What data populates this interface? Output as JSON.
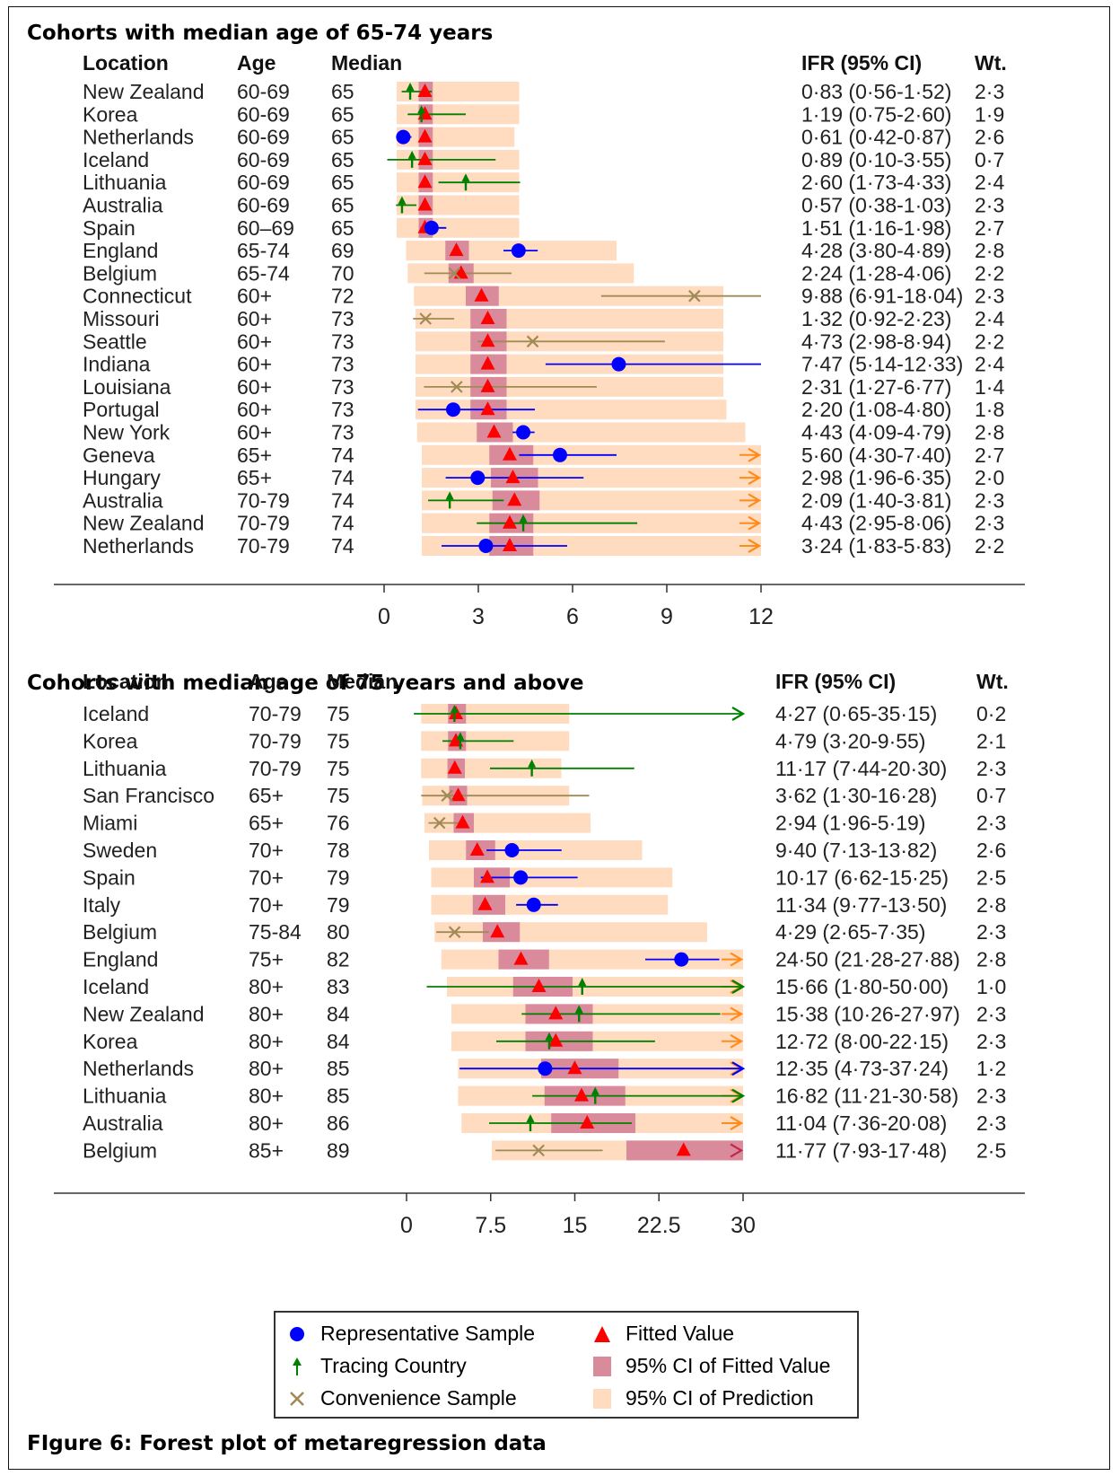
{
  "figure_caption": "FIgure 6: Forest plot of metaregression data",
  "colors": {
    "representative": "#0000ff",
    "tracing": "#008000",
    "convenience": "#a08a55",
    "fitted": "#ff0000",
    "ci_fitted": "#d98b9b",
    "ci_prediction": "#ffdcbf",
    "arrow_truncation": "#ff8c1a"
  },
  "legend": {
    "representative": "Representative Sample",
    "tracing": "Tracing Country",
    "convenience": "Convenience Sample",
    "fitted": "Fitted Value",
    "ci_fitted": "95% CI of Fitted Value",
    "ci_prediction": "95% CI of Prediction"
  },
  "chart_data": [
    {
      "type": "forest",
      "title": "Cohorts with median age of 65-74 years",
      "columns": {
        "location": "Location",
        "age": "Age",
        "median": "Median",
        "ifr": "IFR (95% CI)",
        "wt": "Wt."
      },
      "xticks": [
        0,
        3,
        6,
        9,
        12
      ],
      "xlabels": [
        "0",
        "3",
        "6",
        "9",
        "12"
      ],
      "xlim": [
        0,
        12
      ],
      "rows": [
        {
          "location": "New Zealand",
          "age": "60-69",
          "median": "65",
          "ifr_text": "0·83 (0·56-1·52)",
          "wt": "2·3",
          "type": "tracing",
          "est": 0.83,
          "lo": 0.56,
          "hi": 1.52,
          "fit": 1.3,
          "fit_lo": 1.1,
          "fit_hi": 1.55,
          "pred_lo": 0.4,
          "pred_hi": 4.3,
          "pred_arrow": false
        },
        {
          "location": "Korea",
          "age": "60-69",
          "median": "65",
          "ifr_text": "1·19 (0·75-2·60)",
          "wt": "1·9",
          "type": "tracing",
          "est": 1.19,
          "lo": 0.75,
          "hi": 2.6,
          "fit": 1.3,
          "fit_lo": 1.1,
          "fit_hi": 1.55,
          "pred_lo": 0.4,
          "pred_hi": 4.3,
          "pred_arrow": false
        },
        {
          "location": "Netherlands",
          "age": "60-69",
          "median": "65",
          "ifr_text": "0·61 (0·42-0·87)",
          "wt": "2·6",
          "type": "representative",
          "est": 0.61,
          "lo": 0.42,
          "hi": 0.87,
          "fit": 1.3,
          "fit_lo": 1.1,
          "fit_hi": 1.55,
          "pred_lo": 0.4,
          "pred_hi": 4.15,
          "pred_arrow": false
        },
        {
          "location": "Iceland",
          "age": "60-69",
          "median": "65",
          "ifr_text": "0·89 (0·10-3·55)",
          "wt": "0·7",
          "type": "tracing",
          "est": 0.89,
          "lo": 0.1,
          "hi": 3.55,
          "fit": 1.3,
          "fit_lo": 1.1,
          "fit_hi": 1.55,
          "pred_lo": 0.4,
          "pred_hi": 4.3,
          "pred_arrow": false
        },
        {
          "location": "Lithuania",
          "age": "60-69",
          "median": "65",
          "ifr_text": "2·60 (1·73-4·33)",
          "wt": "2·4",
          "type": "tracing",
          "est": 2.6,
          "lo": 1.73,
          "hi": 4.33,
          "fit": 1.3,
          "fit_lo": 1.1,
          "fit_hi": 1.55,
          "pred_lo": 0.4,
          "pred_hi": 4.3,
          "pred_arrow": false
        },
        {
          "location": "Australia",
          "age": "60-69",
          "median": "65",
          "ifr_text": "0·57 (0·38-1·03)",
          "wt": "2·3",
          "type": "tracing",
          "est": 0.57,
          "lo": 0.38,
          "hi": 1.03,
          "fit": 1.3,
          "fit_lo": 1.1,
          "fit_hi": 1.55,
          "pred_lo": 0.4,
          "pred_hi": 4.3,
          "pred_arrow": false
        },
        {
          "location": "Spain",
          "age": "60–69",
          "median": "65",
          "ifr_text": "1·51 (1·16-1·98)",
          "wt": "2·7",
          "type": "representative",
          "est": 1.51,
          "lo": 1.16,
          "hi": 1.98,
          "fit": 1.3,
          "fit_lo": 1.1,
          "fit_hi": 1.55,
          "pred_lo": 0.4,
          "pred_hi": 4.3,
          "pred_arrow": false
        },
        {
          "location": "England",
          "age": "65-74",
          "median": "69",
          "ifr_text": "4·28 (3·80-4·89)",
          "wt": "2·8",
          "type": "representative",
          "est": 4.28,
          "lo": 3.8,
          "hi": 4.89,
          "fit": 2.3,
          "fit_lo": 1.95,
          "fit_hi": 2.7,
          "pred_lo": 0.7,
          "pred_hi": 7.4,
          "pred_arrow": false
        },
        {
          "location": "Belgium",
          "age": "65-74",
          "median": "70",
          "ifr_text": "2·24 (1·28-4·06)",
          "wt": "2·2",
          "type": "convenience",
          "est": 2.24,
          "lo": 1.28,
          "hi": 4.06,
          "fit": 2.45,
          "fit_lo": 2.05,
          "fit_hi": 2.85,
          "pred_lo": 0.75,
          "pred_hi": 7.95,
          "pred_arrow": false
        },
        {
          "location": "Connecticut",
          "age": "60+",
          "median": "72",
          "ifr_text": "9·88 (6·91-18·04)",
          "wt": "2·3",
          "type": "convenience",
          "est": 9.88,
          "lo": 6.91,
          "hi": 18.04,
          "fit": 3.1,
          "fit_lo": 2.6,
          "fit_hi": 3.65,
          "pred_lo": 0.95,
          "pred_hi": 10.8,
          "pred_arrow": false
        },
        {
          "location": "Missouri",
          "age": "60+",
          "median": "73",
          "ifr_text": "1·32 (0·92-2·23)",
          "wt": "2·4",
          "type": "convenience",
          "est": 1.32,
          "lo": 0.92,
          "hi": 2.23,
          "fit": 3.3,
          "fit_lo": 2.75,
          "fit_hi": 3.9,
          "pred_lo": 1.0,
          "pred_hi": 10.8,
          "pred_arrow": false
        },
        {
          "location": "Seattle",
          "age": "60+",
          "median": "73",
          "ifr_text": "4·73 (2·98-8·94)",
          "wt": "2·2",
          "type": "convenience",
          "est": 4.73,
          "lo": 2.98,
          "hi": 8.94,
          "fit": 3.3,
          "fit_lo": 2.75,
          "fit_hi": 3.9,
          "pred_lo": 1.0,
          "pred_hi": 10.8,
          "pred_arrow": false
        },
        {
          "location": "Indiana",
          "age": "60+",
          "median": "73",
          "ifr_text": "7·47 (5·14-12·33)",
          "wt": "2·4",
          "type": "representative",
          "est": 7.47,
          "lo": 5.14,
          "hi": 12.33,
          "fit": 3.3,
          "fit_lo": 2.75,
          "fit_hi": 3.9,
          "pred_lo": 1.0,
          "pred_hi": 10.8,
          "pred_arrow": false
        },
        {
          "location": "Louisiana",
          "age": "60+",
          "median": "73",
          "ifr_text": "2·31 (1·27-6·77)",
          "wt": "1·4",
          "type": "convenience",
          "est": 2.31,
          "lo": 1.27,
          "hi": 6.77,
          "fit": 3.3,
          "fit_lo": 2.75,
          "fit_hi": 3.9,
          "pred_lo": 1.0,
          "pred_hi": 10.8,
          "pred_arrow": false
        },
        {
          "location": "Portugal",
          "age": "60+",
          "median": "73",
          "ifr_text": "2·20 (1·08-4·80)",
          "wt": "1·8",
          "type": "representative",
          "est": 2.2,
          "lo": 1.08,
          "hi": 4.8,
          "fit": 3.3,
          "fit_lo": 2.75,
          "fit_hi": 3.9,
          "pred_lo": 1.0,
          "pred_hi": 10.9,
          "pred_arrow": false
        },
        {
          "location": "New York",
          "age": "60+",
          "median": "73",
          "ifr_text": "4·43 (4·09-4·79)",
          "wt": "2·8",
          "type": "representative",
          "est": 4.43,
          "lo": 4.09,
          "hi": 4.79,
          "fit": 3.5,
          "fit_lo": 2.95,
          "fit_hi": 4.1,
          "pred_lo": 1.05,
          "pred_hi": 11.5,
          "pred_arrow": false
        },
        {
          "location": "Geneva",
          "age": "65+",
          "median": "74",
          "ifr_text": "5·60 (4·30-7·40)",
          "wt": "2·7",
          "type": "representative",
          "est": 5.6,
          "lo": 4.3,
          "hi": 7.4,
          "fit": 4.0,
          "fit_lo": 3.35,
          "fit_hi": 4.75,
          "pred_lo": 1.2,
          "pred_hi": 12.0,
          "pred_arrow": true
        },
        {
          "location": "Hungary",
          "age": "65+",
          "median": "74",
          "ifr_text": "2·98 (1·96-6·35)",
          "wt": "2·0",
          "type": "representative",
          "est": 2.98,
          "lo": 1.96,
          "hi": 6.35,
          "fit": 4.1,
          "fit_lo": 3.4,
          "fit_hi": 4.9,
          "pred_lo": 1.2,
          "pred_hi": 12.0,
          "pred_arrow": true
        },
        {
          "location": "Australia",
          "age": "70-79",
          "median": "74",
          "ifr_text": "2·09 (1·40-3·81)",
          "wt": "2·3",
          "type": "tracing",
          "est": 2.09,
          "lo": 1.4,
          "hi": 3.81,
          "fit": 4.15,
          "fit_lo": 3.45,
          "fit_hi": 4.95,
          "pred_lo": 1.2,
          "pred_hi": 12.0,
          "pred_arrow": true
        },
        {
          "location": "New Zealand",
          "age": "70-79",
          "median": "74",
          "ifr_text": "4·43 (2·95-8·06)",
          "wt": "2·3",
          "type": "tracing",
          "est": 4.43,
          "lo": 2.95,
          "hi": 8.06,
          "fit": 4.0,
          "fit_lo": 3.35,
          "fit_hi": 4.75,
          "pred_lo": 1.2,
          "pred_hi": 12.0,
          "pred_arrow": true
        },
        {
          "location": "Netherlands",
          "age": "70-79",
          "median": "74",
          "ifr_text": "3·24 (1·83-5·83)",
          "wt": "2·2",
          "type": "representative",
          "est": 3.24,
          "lo": 1.83,
          "hi": 5.83,
          "fit": 4.0,
          "fit_lo": 3.35,
          "fit_hi": 4.75,
          "pred_lo": 1.2,
          "pred_hi": 12.0,
          "pred_arrow": true
        }
      ]
    },
    {
      "type": "forest",
      "title": "Cohorts with median age of 75 years and above",
      "columns": {
        "location": "Location",
        "age": "Age",
        "median": "Median",
        "ifr": "IFR (95% CI)",
        "wt": "Wt."
      },
      "xticks": [
        0,
        7.5,
        15,
        22.5,
        30
      ],
      "xlabels": [
        "0",
        "7.5",
        "15",
        "22.5",
        "30"
      ],
      "xlim": [
        0,
        30
      ],
      "rows": [
        {
          "location": "Iceland",
          "age": "70-79",
          "median": "75",
          "ifr_text": "4·27 (0·65-35·15)",
          "wt": "0·2",
          "type": "tracing",
          "est": 4.27,
          "lo": 0.65,
          "hi": 30,
          "hi_arrow": true,
          "fit": 4.4,
          "fit_lo": 3.7,
          "fit_hi": 5.3,
          "pred_lo": 1.3,
          "pred_hi": 14.5,
          "pred_arrow": false
        },
        {
          "location": "Korea",
          "age": "70-79",
          "median": "75",
          "ifr_text": "4·79 (3·20-9·55)",
          "wt": "2·1",
          "type": "tracing",
          "est": 4.79,
          "lo": 3.2,
          "hi": 9.55,
          "fit": 4.4,
          "fit_lo": 3.7,
          "fit_hi": 5.3,
          "pred_lo": 1.3,
          "pred_hi": 14.5,
          "pred_arrow": false
        },
        {
          "location": "Lithuania",
          "age": "70-79",
          "median": "75",
          "ifr_text": "11·17 (7·44-20·30)",
          "wt": "2·3",
          "type": "tracing",
          "est": 11.17,
          "lo": 7.44,
          "hi": 20.3,
          "fit": 4.3,
          "fit_lo": 3.65,
          "fit_hi": 5.2,
          "pred_lo": 1.3,
          "pred_hi": 13.8,
          "pred_arrow": false
        },
        {
          "location": "San Francisco",
          "age": "65+",
          "median": "75",
          "ifr_text": "3·62 (1·30-16·28)",
          "wt": "0·7",
          "type": "convenience",
          "est": 3.62,
          "lo": 1.3,
          "hi": 16.28,
          "fit": 4.6,
          "fit_lo": 3.8,
          "fit_hi": 5.4,
          "pred_lo": 1.4,
          "pred_hi": 14.5,
          "pred_arrow": false
        },
        {
          "location": "Miami",
          "age": "65+",
          "median": "76",
          "ifr_text": "2·94 (1·96-5·19)",
          "wt": "2·3",
          "type": "convenience",
          "est": 2.94,
          "lo": 1.96,
          "hi": 5.19,
          "fit": 5.0,
          "fit_lo": 4.2,
          "fit_hi": 6.0,
          "pred_lo": 1.6,
          "pred_hi": 16.4,
          "pred_arrow": false
        },
        {
          "location": "Sweden",
          "age": "70+",
          "median": "78",
          "ifr_text": "9·40 (7·13-13·82)",
          "wt": "2·6",
          "type": "representative",
          "est": 9.4,
          "lo": 7.13,
          "hi": 13.82,
          "fit": 6.3,
          "fit_lo": 5.3,
          "fit_hi": 7.9,
          "pred_lo": 2.0,
          "pred_hi": 21.0,
          "pred_arrow": false
        },
        {
          "location": "Spain",
          "age": "70+",
          "median": "79",
          "ifr_text": "10·17 (6·62-15·25)",
          "wt": "2·5",
          "type": "representative",
          "est": 10.17,
          "lo": 6.62,
          "hi": 15.25,
          "fit": 7.2,
          "fit_lo": 6.0,
          "fit_hi": 9.2,
          "pred_lo": 2.2,
          "pred_hi": 23.7,
          "pred_arrow": false
        },
        {
          "location": "Italy",
          "age": "70+",
          "median": "79",
          "ifr_text": "11·34 (9·77-13·50)",
          "wt": "2·8",
          "type": "representative",
          "est": 11.34,
          "lo": 9.77,
          "hi": 13.5,
          "fit": 7.0,
          "fit_lo": 5.9,
          "fit_hi": 8.8,
          "pred_lo": 2.2,
          "pred_hi": 23.3,
          "pred_arrow": false
        },
        {
          "location": "Belgium",
          "age": "75-84",
          "median": "80",
          "ifr_text": "4·29 (2·65-7·35)",
          "wt": "2·3",
          "type": "convenience",
          "est": 4.29,
          "lo": 2.65,
          "hi": 7.35,
          "fit": 8.1,
          "fit_lo": 6.8,
          "fit_hi": 10.1,
          "pred_lo": 2.5,
          "pred_hi": 26.8,
          "pred_arrow": false
        },
        {
          "location": "England",
          "age": "75+",
          "median": "82",
          "ifr_text": "24·50 (21·28-27·88)",
          "wt": "2·8",
          "type": "representative",
          "est": 24.5,
          "lo": 21.28,
          "hi": 27.88,
          "fit": 10.2,
          "fit_lo": 8.2,
          "fit_hi": 12.7,
          "pred_lo": 3.1,
          "pred_hi": 30,
          "pred_arrow": true
        },
        {
          "location": "Iceland",
          "age": "80+",
          "median": "83",
          "ifr_text": "15·66 (1·80-50·00)",
          "wt": "1·0",
          "type": "tracing",
          "est": 15.66,
          "lo": 1.8,
          "hi": 30,
          "hi_arrow": true,
          "fit": 11.8,
          "fit_lo": 9.5,
          "fit_hi": 14.8,
          "pred_lo": 3.6,
          "pred_hi": 30,
          "pred_arrow": true
        },
        {
          "location": "New Zealand",
          "age": "80+",
          "median": "84",
          "ifr_text": "15·38 (10·26-27·97)",
          "wt": "2·3",
          "type": "tracing",
          "est": 15.38,
          "lo": 10.26,
          "hi": 27.97,
          "fit": 13.3,
          "fit_lo": 10.6,
          "fit_hi": 16.6,
          "pred_lo": 4.0,
          "pred_hi": 30,
          "pred_arrow": true
        },
        {
          "location": "Korea",
          "age": "80+",
          "median": "84",
          "ifr_text": "12·72 (8·00-22·15)",
          "wt": "2·3",
          "type": "tracing",
          "est": 12.72,
          "lo": 8.0,
          "hi": 22.15,
          "fit": 13.3,
          "fit_lo": 10.6,
          "fit_hi": 16.6,
          "pred_lo": 4.0,
          "pred_hi": 30,
          "pred_arrow": true
        },
        {
          "location": "Netherlands",
          "age": "80+",
          "median": "85",
          "ifr_text": "12·35 (4·73-37·24)",
          "wt": "1·2",
          "type": "representative",
          "est": 12.35,
          "lo": 4.73,
          "hi": 30,
          "hi_arrow": true,
          "fit": 15.0,
          "fit_lo": 12.0,
          "fit_hi": 18.9,
          "pred_lo": 4.6,
          "pred_hi": 30,
          "pred_arrow": true
        },
        {
          "location": "Lithuania",
          "age": "80+",
          "median": "85",
          "ifr_text": "16·82 (11·21-30·58)",
          "wt": "2·3",
          "type": "tracing",
          "est": 16.82,
          "lo": 11.21,
          "hi": 30,
          "hi_arrow": true,
          "fit": 15.6,
          "fit_lo": 12.3,
          "fit_hi": 19.5,
          "pred_lo": 4.6,
          "pred_hi": 30,
          "pred_arrow": true
        },
        {
          "location": "Australia",
          "age": "80+",
          "median": "86",
          "ifr_text": "11·04 (7·36-20·08)",
          "wt": "2·3",
          "type": "tracing",
          "est": 11.04,
          "lo": 7.36,
          "hi": 20.08,
          "fit": 16.1,
          "fit_lo": 12.9,
          "fit_hi": 20.4,
          "pred_lo": 4.9,
          "pred_hi": 30,
          "pred_arrow": true
        },
        {
          "location": "Belgium",
          "age": "85+",
          "median": "89",
          "ifr_text": "11·77 (7·93-17·48)",
          "wt": "2·5",
          "type": "convenience",
          "est": 11.77,
          "lo": 7.93,
          "hi": 17.48,
          "fit": 24.7,
          "fit_lo": 19.6,
          "fit_hi": 30,
          "fit_arrow": true,
          "pred_lo": 7.6,
          "pred_hi": 30,
          "pred_arrow": false
        }
      ]
    }
  ]
}
